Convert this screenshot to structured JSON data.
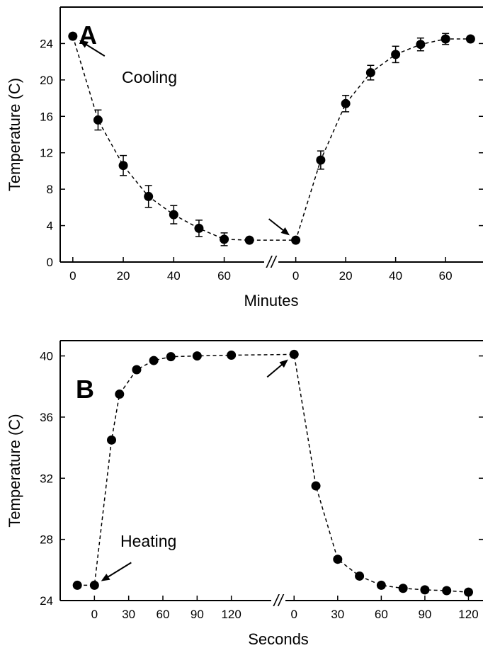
{
  "chart_data": [
    {
      "type": "scatter",
      "panel_label": "A",
      "ylabel": "Temperature (C)",
      "xlabel": "Minutes",
      "ylim": [
        0,
        28
      ],
      "yticks": [
        0,
        4,
        8,
        12,
        16,
        20,
        24
      ],
      "axis_break_label": "//",
      "segments": [
        {
          "xlim": [
            -5,
            75
          ],
          "xticks": [
            0,
            20,
            40,
            60
          ],
          "x": [
            0,
            10,
            20,
            30,
            40,
            50,
            60,
            70
          ],
          "y": [
            24.8,
            15.6,
            10.6,
            7.2,
            5.2,
            3.7,
            2.5,
            2.4
          ],
          "err": [
            0,
            1.1,
            1.1,
            1.2,
            1.0,
            0.9,
            0.7,
            0
          ]
        },
        {
          "xlim": [
            -5,
            75
          ],
          "xticks": [
            0,
            20,
            40,
            60
          ],
          "x": [
            0,
            10,
            20,
            30,
            40,
            50,
            60,
            70
          ],
          "y": [
            2.4,
            11.2,
            17.4,
            20.8,
            22.8,
            23.9,
            24.5,
            24.5
          ],
          "err": [
            0,
            1.0,
            0.9,
            0.8,
            0.9,
            0.7,
            0.6,
            0
          ]
        }
      ],
      "annotations": [
        {
          "text": "Cooling",
          "x_segment": 0,
          "x": 0,
          "y": 24.8
        },
        {
          "text": "",
          "x_segment": 1,
          "x": 0,
          "y": 2.4
        }
      ]
    },
    {
      "type": "scatter",
      "panel_label": "B",
      "ylabel": "Temperature (C)",
      "xlabel": "Seconds",
      "ylim": [
        24,
        41
      ],
      "yticks": [
        24,
        28,
        32,
        36,
        40
      ],
      "axis_break_label": "//",
      "segments": [
        {
          "xlim": [
            -30,
            150
          ],
          "xticks": [
            0,
            30,
            60,
            90,
            120
          ],
          "x": [
            -15,
            0,
            15,
            22,
            37,
            52,
            67,
            90,
            120
          ],
          "y": [
            25.0,
            25.0,
            34.5,
            37.5,
            39.1,
            39.7,
            39.95,
            40.0,
            40.05
          ]
        },
        {
          "xlim": [
            -5,
            130
          ],
          "xticks": [
            0,
            30,
            60,
            90,
            120
          ],
          "x": [
            0,
            15,
            30,
            45,
            60,
            75,
            90,
            105,
            120
          ],
          "y": [
            40.1,
            31.5,
            26.7,
            25.6,
            25.0,
            24.8,
            24.7,
            24.65,
            24.55
          ]
        }
      ],
      "annotations": [
        {
          "text": "Heating",
          "x_segment": 0,
          "x": 0,
          "y": 25.0
        },
        {
          "text": "",
          "x_segment": 1,
          "x": 0,
          "y": 40.1
        }
      ]
    }
  ]
}
